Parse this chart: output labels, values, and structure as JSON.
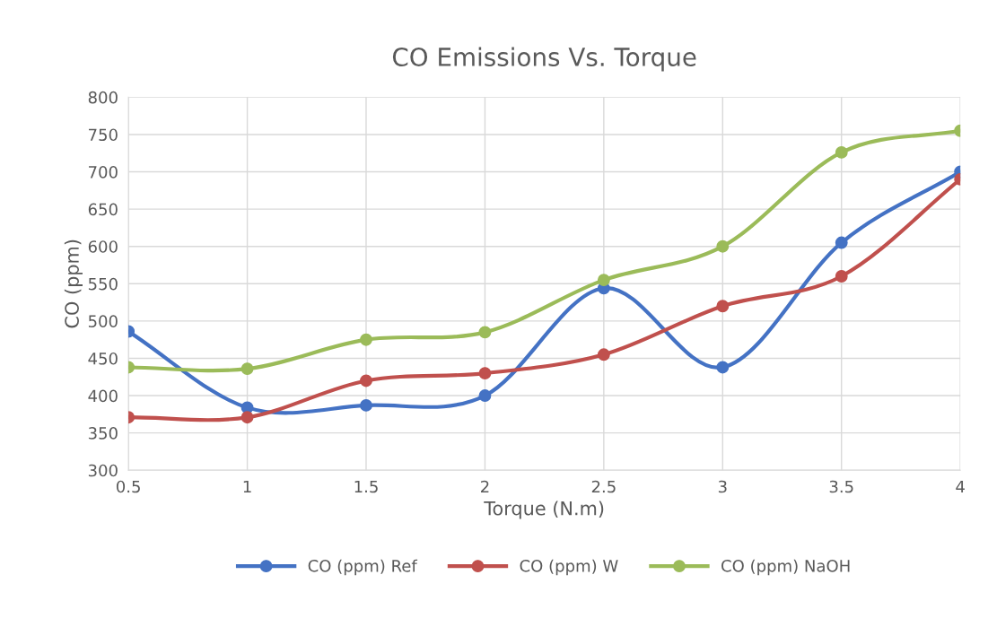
{
  "chart_data": {
    "type": "line",
    "title": "CO Emissions Vs. Torque",
    "xlabel": "Torque (N.m)",
    "ylabel": "CO (ppm)",
    "x": [
      0.5,
      1,
      1.5,
      2,
      2.5,
      3,
      3.5,
      4
    ],
    "series": [
      {
        "name": "CO (ppm) Ref",
        "color": "#4472c4",
        "values": [
          486,
          384,
          387,
          400,
          544,
          438,
          605,
          700
        ]
      },
      {
        "name": "CO (ppm) W",
        "color": "#c0504d",
        "values": [
          371,
          371,
          420,
          430,
          455,
          520,
          560,
          690
        ]
      },
      {
        "name": "CO (ppm) NaOH",
        "color": "#9bbb59",
        "values": [
          438,
          436,
          475,
          485,
          555,
          600,
          726,
          755
        ]
      }
    ],
    "xlim": [
      0.5,
      4
    ],
    "xticks": [
      0.5,
      1,
      1.5,
      2,
      2.5,
      3,
      3.5,
      4
    ],
    "ylim": [
      300,
      800
    ],
    "yticks": [
      300,
      350,
      400,
      450,
      500,
      550,
      600,
      650,
      700,
      750,
      800
    ],
    "grid": true,
    "legend": "bottom",
    "marker": "circle",
    "line_style": "solid"
  }
}
